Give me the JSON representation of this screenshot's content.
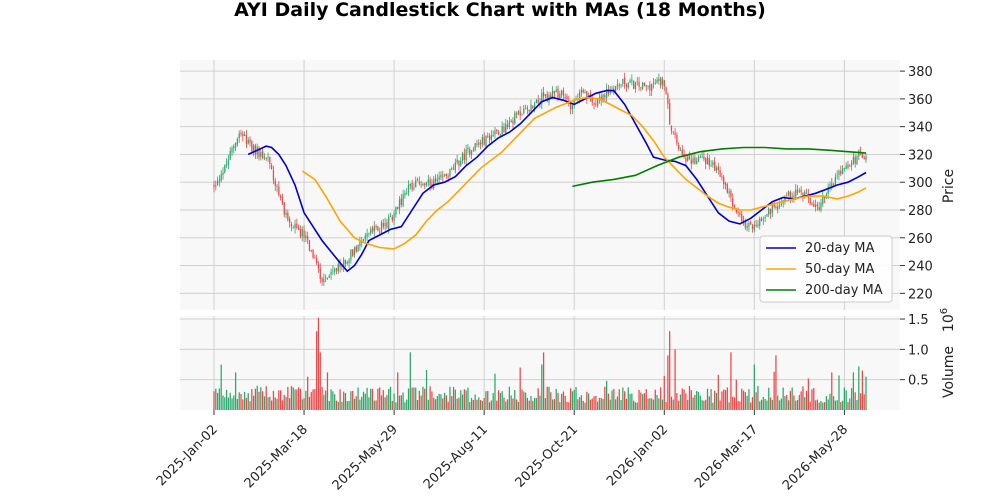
{
  "chart_data": {
    "type": "candlestick",
    "title": "AYI Daily Candlestick Chart with MAs (18 Months)",
    "price_axis": {
      "label": "Price",
      "ylim": [
        208,
        388
      ],
      "ticks": [
        220,
        240,
        260,
        280,
        300,
        320,
        340,
        360,
        380
      ]
    },
    "volume_axis": {
      "label": "Volume",
      "exponent_label": "10",
      "exponent_power": "6",
      "ylim": [
        0,
        1.55
      ],
      "ticks": [
        0.5,
        1.0,
        1.5
      ],
      "tick_labels": [
        "0.5",
        "1.0",
        "1.5"
      ]
    },
    "x_axis": {
      "tick_labels": [
        "2025-Jan-02",
        "2025-Mar-18",
        "2025-May-29",
        "2025-Aug-11",
        "2025-Oct-21",
        "2026-Jan-02",
        "2026-Mar-17",
        "2026-May-28"
      ],
      "tick_index": [
        0,
        50,
        100,
        150,
        200,
        250,
        300,
        350
      ],
      "n_days": 363
    },
    "price_anchors": [
      [
        0,
        298
      ],
      [
        6,
        310
      ],
      [
        12,
        330
      ],
      [
        15,
        338
      ],
      [
        18,
        328
      ],
      [
        24,
        322
      ],
      [
        30,
        318
      ],
      [
        36,
        290
      ],
      [
        42,
        270
      ],
      [
        50,
        262
      ],
      [
        55,
        248
      ],
      [
        60,
        230
      ],
      [
        66,
        234
      ],
      [
        72,
        242
      ],
      [
        78,
        252
      ],
      [
        84,
        262
      ],
      [
        90,
        266
      ],
      [
        96,
        270
      ],
      [
        102,
        282
      ],
      [
        108,
        296
      ],
      [
        114,
        300
      ],
      [
        120,
        298
      ],
      [
        126,
        302
      ],
      [
        132,
        308
      ],
      [
        138,
        318
      ],
      [
        144,
        326
      ],
      [
        150,
        330
      ],
      [
        156,
        336
      ],
      [
        162,
        340
      ],
      [
        168,
        348
      ],
      [
        174,
        352
      ],
      [
        180,
        360
      ],
      [
        186,
        362
      ],
      [
        192,
        364
      ],
      [
        198,
        356
      ],
      [
        204,
        364
      ],
      [
        210,
        358
      ],
      [
        216,
        362
      ],
      [
        222,
        368
      ],
      [
        228,
        372
      ],
      [
        234,
        370
      ],
      [
        240,
        368
      ],
      [
        246,
        372
      ],
      [
        250,
        372
      ],
      [
        254,
        336
      ],
      [
        258,
        326
      ],
      [
        264,
        314
      ],
      [
        270,
        318
      ],
      [
        276,
        314
      ],
      [
        282,
        302
      ],
      [
        288,
        284
      ],
      [
        294,
        268
      ],
      [
        300,
        268
      ],
      [
        306,
        276
      ],
      [
        312,
        284
      ],
      [
        318,
        290
      ],
      [
        324,
        294
      ],
      [
        330,
        288
      ],
      [
        336,
        282
      ],
      [
        340,
        292
      ],
      [
        346,
        306
      ],
      [
        352,
        310
      ],
      [
        358,
        320
      ],
      [
        362,
        318
      ]
    ],
    "volume_spikes": [
      [
        4,
        0.75
      ],
      [
        12,
        0.62
      ],
      [
        24,
        0.4
      ],
      [
        52,
        0.55
      ],
      [
        57,
        1.3
      ],
      [
        58,
        1.52
      ],
      [
        59,
        0.95
      ],
      [
        63,
        0.62
      ],
      [
        102,
        0.62
      ],
      [
        109,
        0.95
      ],
      [
        118,
        0.66
      ],
      [
        156,
        0.6
      ],
      [
        170,
        0.7
      ],
      [
        182,
        0.75
      ],
      [
        183,
        0.95
      ],
      [
        218,
        0.48
      ],
      [
        250,
        0.56
      ],
      [
        252,
        0.9
      ],
      [
        253,
        1.3
      ],
      [
        256,
        1.0
      ],
      [
        280,
        0.58
      ],
      [
        287,
        0.95
      ],
      [
        290,
        0.5
      ],
      [
        300,
        0.75
      ],
      [
        311,
        0.63
      ],
      [
        312,
        0.9
      ],
      [
        330,
        0.52
      ],
      [
        343,
        0.62
      ],
      [
        347,
        0.57
      ],
      [
        355,
        0.62
      ],
      [
        358,
        0.72
      ],
      [
        360,
        0.65
      ],
      [
        362,
        0.55
      ]
    ],
    "moving_averages": [
      {
        "name": "20-day MA",
        "color": "#0000cc",
        "points": [
          [
            19,
            320
          ],
          [
            24,
            323
          ],
          [
            29,
            326
          ],
          [
            32,
            325
          ],
          [
            36,
            320
          ],
          [
            40,
            312
          ],
          [
            45,
            298
          ],
          [
            50,
            278
          ],
          [
            55,
            268
          ],
          [
            60,
            258
          ],
          [
            65,
            250
          ],
          [
            70,
            242
          ],
          [
            74,
            236
          ],
          [
            78,
            240
          ],
          [
            82,
            248
          ],
          [
            86,
            258
          ],
          [
            92,
            262
          ],
          [
            98,
            266
          ],
          [
            104,
            268
          ],
          [
            110,
            280
          ],
          [
            116,
            292
          ],
          [
            122,
            298
          ],
          [
            128,
            300
          ],
          [
            134,
            304
          ],
          [
            140,
            312
          ],
          [
            146,
            318
          ],
          [
            152,
            326
          ],
          [
            158,
            332
          ],
          [
            164,
            336
          ],
          [
            170,
            342
          ],
          [
            176,
            350
          ],
          [
            182,
            358
          ],
          [
            188,
            361
          ],
          [
            194,
            359
          ],
          [
            200,
            356
          ],
          [
            206,
            360
          ],
          [
            212,
            364
          ],
          [
            218,
            366
          ],
          [
            222,
            366
          ],
          [
            228,
            356
          ],
          [
            234,
            342
          ],
          [
            240,
            328
          ],
          [
            244,
            318
          ],
          [
            250,
            316
          ],
          [
            256,
            315
          ],
          [
            262,
            312
          ],
          [
            268,
            302
          ],
          [
            274,
            290
          ],
          [
            280,
            278
          ],
          [
            286,
            272
          ],
          [
            292,
            270
          ],
          [
            298,
            274
          ],
          [
            304,
            280
          ],
          [
            310,
            286
          ],
          [
            316,
            289
          ],
          [
            322,
            288
          ],
          [
            328,
            290
          ],
          [
            334,
            292
          ],
          [
            340,
            295
          ],
          [
            346,
            298
          ],
          [
            352,
            300
          ],
          [
            358,
            304
          ],
          [
            362,
            307
          ]
        ]
      },
      {
        "name": "50-day MA",
        "color": "#ffa500",
        "points": [
          [
            49,
            308
          ],
          [
            56,
            302
          ],
          [
            62,
            290
          ],
          [
            70,
            272
          ],
          [
            78,
            260
          ],
          [
            84,
            256
          ],
          [
            92,
            253
          ],
          [
            100,
            252
          ],
          [
            106,
            256
          ],
          [
            112,
            262
          ],
          [
            118,
            272
          ],
          [
            124,
            280
          ],
          [
            130,
            286
          ],
          [
            136,
            294
          ],
          [
            142,
            302
          ],
          [
            148,
            310
          ],
          [
            154,
            316
          ],
          [
            160,
            322
          ],
          [
            166,
            330
          ],
          [
            172,
            338
          ],
          [
            178,
            346
          ],
          [
            184,
            350
          ],
          [
            190,
            354
          ],
          [
            196,
            357
          ],
          [
            202,
            360
          ],
          [
            208,
            361
          ],
          [
            214,
            360
          ],
          [
            220,
            356
          ],
          [
            226,
            352
          ],
          [
            232,
            348
          ],
          [
            238,
            340
          ],
          [
            244,
            330
          ],
          [
            250,
            318
          ],
          [
            256,
            310
          ],
          [
            262,
            302
          ],
          [
            268,
            296
          ],
          [
            274,
            290
          ],
          [
            280,
            285
          ],
          [
            286,
            282
          ],
          [
            292,
            280
          ],
          [
            298,
            280
          ],
          [
            304,
            282
          ],
          [
            310,
            284
          ],
          [
            316,
            286
          ],
          [
            322,
            288
          ],
          [
            330,
            290
          ],
          [
            338,
            290
          ],
          [
            346,
            288
          ],
          [
            352,
            290
          ],
          [
            358,
            293
          ],
          [
            362,
            296
          ]
        ]
      },
      {
        "name": "200-day MA",
        "color": "#008000",
        "points": [
          [
            199,
            297
          ],
          [
            210,
            300
          ],
          [
            222,
            302
          ],
          [
            234,
            305
          ],
          [
            246,
            312
          ],
          [
            258,
            318
          ],
          [
            270,
            322
          ],
          [
            282,
            324
          ],
          [
            294,
            325
          ],
          [
            306,
            325
          ],
          [
            318,
            324
          ],
          [
            330,
            324
          ],
          [
            342,
            323
          ],
          [
            352,
            322
          ],
          [
            362,
            321
          ]
        ]
      }
    ],
    "up_color": "#2ca86a",
    "down_color": "#f04545",
    "background": "#f8f8f8",
    "grid": true,
    "legend_position": "lower-right"
  }
}
